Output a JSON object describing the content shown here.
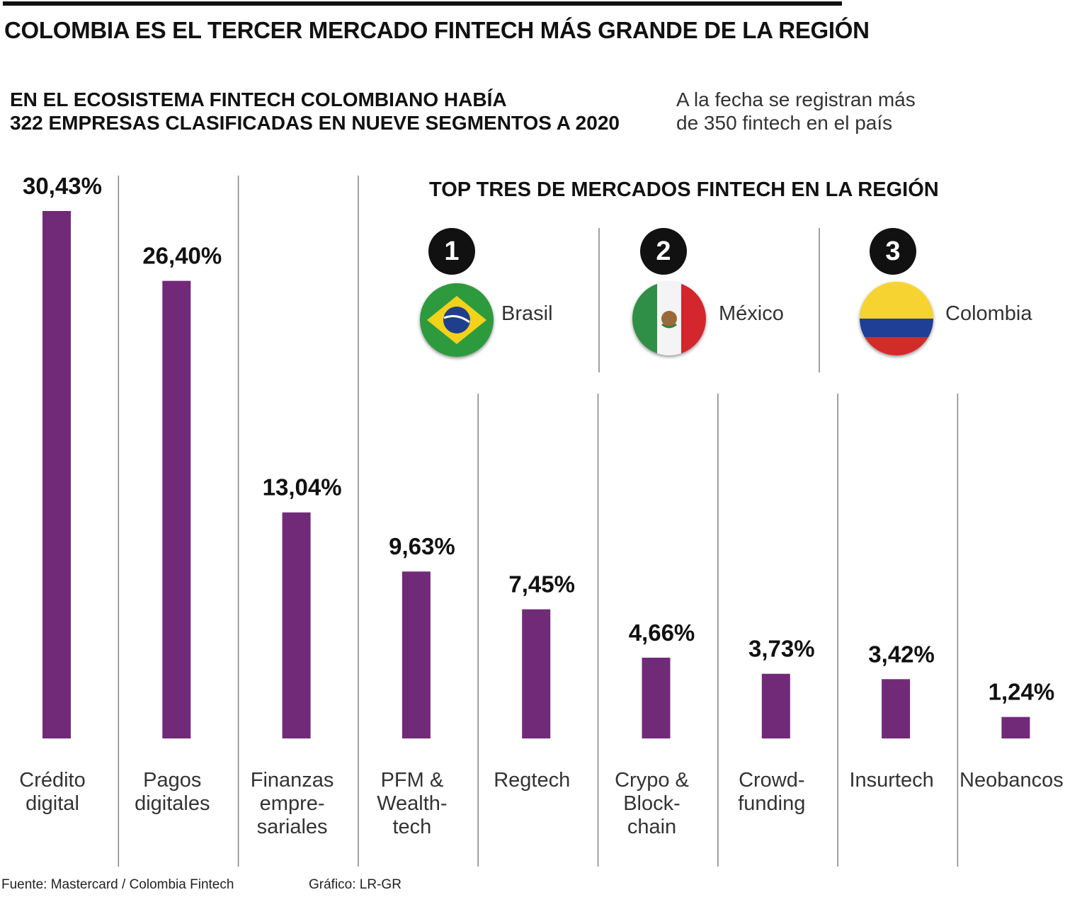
{
  "title": "COLOMBIA ES EL TERCER MERCADO FINTECH MÁS GRANDE DE LA REGIÓN",
  "subtitle_lines": [
    "EN EL ECOSISTEMA FINTECH COLOMBIANO HABÍA",
    "322 EMPRESAS CLASIFICADAS EN NUEVE SEGMENTOS A 2020"
  ],
  "note_lines": [
    "A la fecha se registran más",
    "de 350 fintech en el país"
  ],
  "chart_data": {
    "type": "bar",
    "categories": [
      [
        "Crédito",
        "digital"
      ],
      [
        "Pagos",
        "digitales"
      ],
      [
        "Finanzas",
        "empre-",
        "sariales"
      ],
      [
        "PFM &",
        "Wealth-",
        "tech"
      ],
      [
        "Regtech"
      ],
      [
        "Crypo &",
        "Block-",
        "chain"
      ],
      [
        "Crowd-",
        "funding"
      ],
      [
        "Insurtech"
      ],
      [
        "Neobancos"
      ]
    ],
    "values": [
      30.43,
      26.4,
      13.04,
      9.63,
      7.45,
      4.66,
      3.73,
      3.42,
      1.24
    ],
    "value_labels": [
      "30,43%",
      "26,40%",
      "13,04%",
      "9,63%",
      "7,45%",
      "4,66%",
      "3,73%",
      "3,42%",
      "1,24%"
    ],
    "ylim": [
      0,
      30.43
    ],
    "bar_color": "#712a78",
    "grid": false
  },
  "top3": {
    "title": "TOP TRES DE MERCADOS FINTECH EN LA REGIÓN",
    "items": [
      {
        "rank": "1",
        "country": "Brasil",
        "flag": "brazil-flag-icon"
      },
      {
        "rank": "2",
        "country": "México",
        "flag": "mexico-flag-icon"
      },
      {
        "rank": "3",
        "country": "Colombia",
        "flag": "colombia-flag-icon"
      }
    ]
  },
  "footer": {
    "source": "Fuente: Mastercard / Colombia Fintech",
    "credit": "Gráfico: LR-GR"
  }
}
